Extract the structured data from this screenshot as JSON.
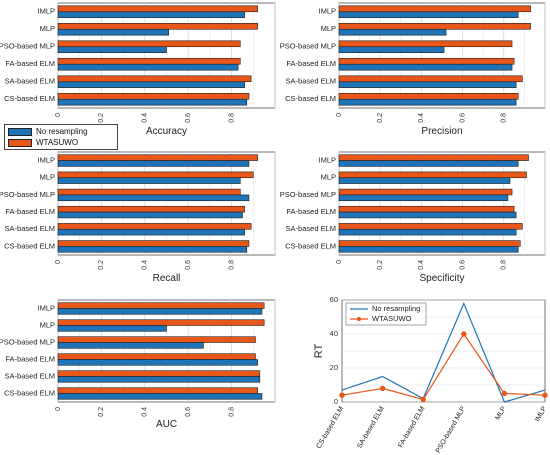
{
  "colors": {
    "no_resampling": "#1f73b7",
    "wtasuwo": "#e8571a",
    "grid": "#d9d9d9",
    "axis": "#4d4d4d"
  },
  "legend": {
    "items": [
      "No resampling",
      "WTASUWO"
    ],
    "placement": "between-top-rows-left"
  },
  "chart_data": [
    {
      "type": "bar",
      "orientation": "horizontal",
      "xlabel": "Accuracy",
      "xlim": [
        0,
        1
      ],
      "xticks": [
        "0",
        "0.2",
        "0.4",
        "0.6",
        "0.8"
      ],
      "categories": [
        "CS-based ELM",
        "SA-based ELM",
        "FA-based ELM",
        "PSO-based MLP",
        "MLP",
        "IMLP"
      ],
      "series": [
        {
          "name": "No resampling",
          "values": [
            0.87,
            0.86,
            0.83,
            0.5,
            0.51,
            0.86
          ]
        },
        {
          "name": "WTASUWO",
          "values": [
            0.88,
            0.89,
            0.84,
            0.84,
            0.92,
            0.92
          ]
        }
      ]
    },
    {
      "type": "bar",
      "orientation": "horizontal",
      "xlabel": "Precision",
      "xlim": [
        0,
        1
      ],
      "xticks": [
        "0",
        "0.2",
        "0.4",
        "0.6",
        "0.8"
      ],
      "categories": [
        "CS-based ELM",
        "SA-based ELM",
        "FA-based ELM",
        "PSO-based MLP",
        "MLP",
        "IMLP"
      ],
      "series": [
        {
          "name": "No resampling",
          "values": [
            0.86,
            0.86,
            0.84,
            0.51,
            0.52,
            0.87
          ]
        },
        {
          "name": "WTASUWO",
          "values": [
            0.87,
            0.89,
            0.85,
            0.84,
            0.93,
            0.93
          ]
        }
      ]
    },
    {
      "type": "bar",
      "orientation": "horizontal",
      "xlabel": "Recall",
      "xlim": [
        0,
        1
      ],
      "xticks": [
        "0",
        "0.2",
        "0.4",
        "0.6",
        "0.8"
      ],
      "categories": [
        "CS-based ELM",
        "SA-based ELM",
        "FA-based ELM",
        "PSO-based MLP",
        "MLP",
        "IMLP"
      ],
      "series": [
        {
          "name": "No resampling",
          "values": [
            0.87,
            0.86,
            0.85,
            0.88,
            0.84,
            0.88
          ]
        },
        {
          "name": "WTASUWO",
          "values": [
            0.88,
            0.89,
            0.86,
            0.84,
            0.9,
            0.92
          ]
        }
      ]
    },
    {
      "type": "bar",
      "orientation": "horizontal",
      "xlabel": "Specificity",
      "xlim": [
        0,
        1
      ],
      "xticks": [
        "0",
        "0.2",
        "0.4",
        "0.6",
        "0.8"
      ],
      "categories": [
        "CS-based ELM",
        "SA-based ELM",
        "FA-based ELM",
        "PSO-based MLP",
        "MLP",
        "IMLP"
      ],
      "series": [
        {
          "name": "No resampling",
          "values": [
            0.87,
            0.86,
            0.86,
            0.82,
            0.83,
            0.87
          ]
        },
        {
          "name": "WTASUWO",
          "values": [
            0.88,
            0.89,
            0.85,
            0.84,
            0.91,
            0.92
          ]
        }
      ]
    },
    {
      "type": "bar",
      "orientation": "horizontal",
      "xlabel": "AUC",
      "xlim": [
        0,
        1
      ],
      "xticks": [
        "0",
        "0.2",
        "0.4",
        "0.6",
        "0.8"
      ],
      "categories": [
        "CS-based ELM",
        "SA-based ELM",
        "FA-based ELM",
        "PSO-based MLP",
        "MLP",
        "IMLP"
      ],
      "series": [
        {
          "name": "No resampling",
          "values": [
            0.94,
            0.93,
            0.92,
            0.67,
            0.5,
            0.94
          ]
        },
        {
          "name": "WTASUWO",
          "values": [
            0.92,
            0.93,
            0.91,
            0.91,
            0.95,
            0.95
          ]
        }
      ]
    },
    {
      "type": "line",
      "ylabel": "RT",
      "ylim": [
        0,
        60
      ],
      "yticks": [
        "0",
        "20",
        "40",
        "60"
      ],
      "categories": [
        "CS-based ELM",
        "SA-based ELM",
        "FA-based ELM",
        "PSO-based MLP",
        "MLP",
        "IMLP"
      ],
      "legend": "top-left",
      "series": [
        {
          "name": "No resampling",
          "values": [
            7,
            15,
            2,
            58,
            0,
            7
          ],
          "marker": "none"
        },
        {
          "name": "WTASUWO",
          "values": [
            4,
            8,
            1.5,
            40,
            5,
            4
          ],
          "marker": "circle"
        }
      ]
    }
  ]
}
